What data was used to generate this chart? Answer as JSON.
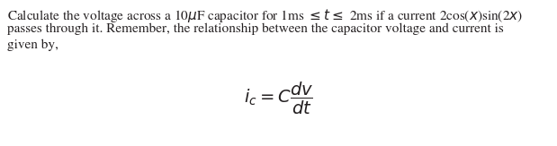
{
  "line1": "Calculate the voltage across a 10μF capacitor for 1ms ≤ ≤ 2ms if a current 2cos(χ)sin(2χ)",
  "line2": "passes through it. Remember, the relationship between the capacitor voltage and current is",
  "line3": "given by,",
  "formula": "$i_c = C\\dfrac{dv}{dt}$",
  "bg_color": "#ffffff",
  "text_color": "#231f20",
  "font_size": 11.0,
  "formula_font_size": 14,
  "fig_width": 6.19,
  "fig_height": 1.63,
  "dpi": 100
}
